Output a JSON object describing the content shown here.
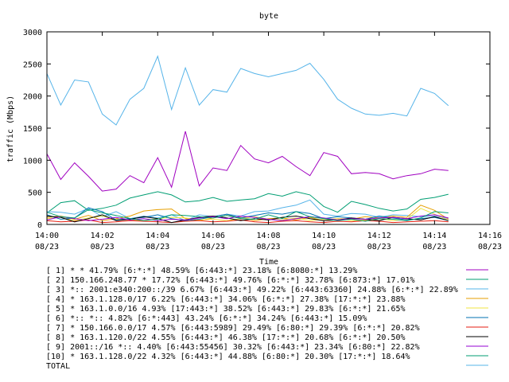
{
  "chart_data": {
    "type": "line",
    "title": "byte",
    "xlabel": "Time",
    "ylabel": "traffic (Mbps)",
    "ylim": [
      0,
      3000
    ],
    "yticks": [
      "0",
      "500",
      "1000",
      "1500",
      "2000",
      "2500",
      "3000"
    ],
    "xlim": [
      "14:00",
      "14:16"
    ],
    "xticks": [
      {
        "time": "14:00",
        "date": "08/23"
      },
      {
        "time": "14:02",
        "date": "08/23"
      },
      {
        "time": "14:04",
        "date": "08/23"
      },
      {
        "time": "14:06",
        "date": "08/23"
      },
      {
        "time": "14:08",
        "date": "08/23"
      },
      {
        "time": "14:10",
        "date": "08/23"
      },
      {
        "time": "14:12",
        "date": "08/23"
      },
      {
        "time": "14:14",
        "date": "08/23"
      },
      {
        "time": "14:16",
        "date": "08/23"
      }
    ],
    "x_minutes": [
      0,
      0.5,
      1,
      1.5,
      2,
      2.5,
      3,
      3.5,
      4,
      4.5,
      5,
      5.5,
      6,
      6.5,
      7,
      7.5,
      8,
      8.5,
      9,
      9.5,
      10,
      10.5,
      11,
      11.5,
      12,
      12.5,
      13,
      13.5,
      14,
      14.5
    ],
    "grid": false,
    "legend_placement": "bottom",
    "series": [
      {
        "name": "[ 1] * * 41.79%  [6:*:*] 48.59% [6:443:*] 23.18% [6:8080:*] 13.29%",
        "color": "#a000c0",
        "values": [
          1100,
          700,
          960,
          750,
          520,
          550,
          760,
          650,
          1040,
          580,
          1450,
          600,
          880,
          840,
          1230,
          1020,
          960,
          1060,
          900,
          760,
          1120,
          1060,
          790,
          810,
          790,
          710,
          760,
          790,
          860,
          840
        ]
      },
      {
        "name": "[ 2] 150.166.248.77 * 17.72%  [6:443:*] 49.76% [6:*:*] 32.78% [6:873:*] 17.01%",
        "color": "#009e73",
        "values": [
          180,
          340,
          370,
          220,
          250,
          300,
          410,
          460,
          510,
          460,
          350,
          370,
          420,
          360,
          380,
          400,
          480,
          440,
          510,
          460,
          280,
          190,
          360,
          310,
          250,
          210,
          240,
          390,
          420,
          470
        ]
      },
      {
        "name": "[ 3] *:: 2001:e340:200::/39 6.67%  [6:443:*] 49.22% [6:443:63360] 24.88% [6:*:*] 22.89%",
        "color": "#56b4e9",
        "values": [
          200,
          190,
          160,
          250,
          120,
          200,
          90,
          130,
          100,
          150,
          60,
          150,
          120,
          160,
          130,
          200,
          210,
          260,
          300,
          380,
          160,
          130,
          170,
          160,
          110,
          150,
          140,
          120,
          130,
          90
        ]
      },
      {
        "name": "[ 4] * 163.1.128.0/17 6.22%  [6:443:*] 34.06% [6:*:*] 27.38% [17:*:*] 23.88%",
        "color": "#e69f00",
        "values": [
          110,
          130,
          80,
          140,
          60,
          90,
          130,
          210,
          230,
          240,
          90,
          60,
          100,
          140,
          110,
          60,
          90,
          100,
          70,
          110,
          60,
          90,
          80,
          120,
          100,
          130,
          110,
          300,
          220,
          80
        ]
      },
      {
        "name": "[ 5] * 163.1.0.0/16 4.93%  [17:443:*] 38.52% [6:443:*] 29.83% [6:*:*] 21.65%",
        "color": "#f0e442",
        "values": [
          90,
          110,
          60,
          100,
          130,
          80,
          70,
          60,
          90,
          110,
          100,
          70,
          80,
          60,
          90,
          120,
          80,
          70,
          100,
          60,
          80,
          90,
          60,
          70,
          90,
          60,
          80,
          250,
          160,
          60
        ]
      },
      {
        "name": "[ 6] *:: *:: 4.82%  [6:*:443] 43.24% [6:*:*] 34.24% [6:443:*] 15.09%",
        "color": "#0072b2",
        "values": [
          150,
          80,
          100,
          260,
          200,
          70,
          90,
          110,
          150,
          90,
          60,
          80,
          120,
          160,
          100,
          140,
          180,
          160,
          200,
          170,
          90,
          120,
          100,
          80,
          130,
          100,
          70,
          90,
          110,
          60
        ]
      },
      {
        "name": "[ 7] * 150.166.0.0/17 4.57%  [6:443:5989] 29.49% [6:80:*] 29.39% [6:*:*] 20.82%",
        "color": "#e51e10",
        "values": [
          60,
          40,
          50,
          70,
          30,
          40,
          60,
          50,
          40,
          30,
          50,
          60,
          40,
          50,
          70,
          40,
          30,
          50,
          60,
          40,
          30,
          50,
          40,
          60,
          50,
          30,
          40,
          50,
          60,
          40
        ]
      },
      {
        "name": "[ 8] * 163.1.120.0/22 4.55%  [6:443:*] 46.38% [17:*:*] 20.68% [6:*:*] 20.50%",
        "color": "#000000",
        "values": [
          130,
          110,
          40,
          90,
          150,
          60,
          80,
          120,
          90,
          30,
          70,
          110,
          130,
          100,
          60,
          90,
          70,
          110,
          130,
          90,
          60,
          70,
          100,
          80,
          60,
          110,
          90,
          70,
          120,
          60
        ]
      },
      {
        "name": "[ 9] 2001::/16 *:: 4.40%  [6:443:55456] 30.32% [6:443:*] 23.34% [6:80:*] 22.82%",
        "color": "#9400d3",
        "values": [
          70,
          120,
          90,
          60,
          80,
          110,
          70,
          90,
          60,
          80,
          70,
          100,
          120,
          90,
          130,
          110,
          80,
          60,
          90,
          120,
          100,
          70,
          90,
          80,
          100,
          110,
          90,
          130,
          150,
          100
        ]
      },
      {
        "name": "[10] * 163.1.128.0/22 4.32%  [6:443:*] 44.88% [6:80:*] 20.30% [17:*:*] 18.64%",
        "color": "#009e73",
        "values": [
          190,
          120,
          100,
          230,
          180,
          140,
          90,
          60,
          80,
          150,
          140,
          120,
          100,
          140,
          90,
          80,
          150,
          90,
          200,
          120,
          90,
          60,
          80,
          50,
          90,
          80,
          60,
          100,
          200,
          180
        ]
      },
      {
        "name": "TOTAL",
        "color": "#56b4e9",
        "values": [
          2350,
          1860,
          2250,
          2220,
          1720,
          1550,
          1950,
          2120,
          2620,
          1790,
          2440,
          1860,
          2100,
          2060,
          2430,
          2350,
          2300,
          2350,
          2400,
          2510,
          2260,
          1950,
          1810,
          1720,
          1700,
          1730,
          1690,
          2120,
          2040,
          1850
        ]
      }
    ]
  }
}
